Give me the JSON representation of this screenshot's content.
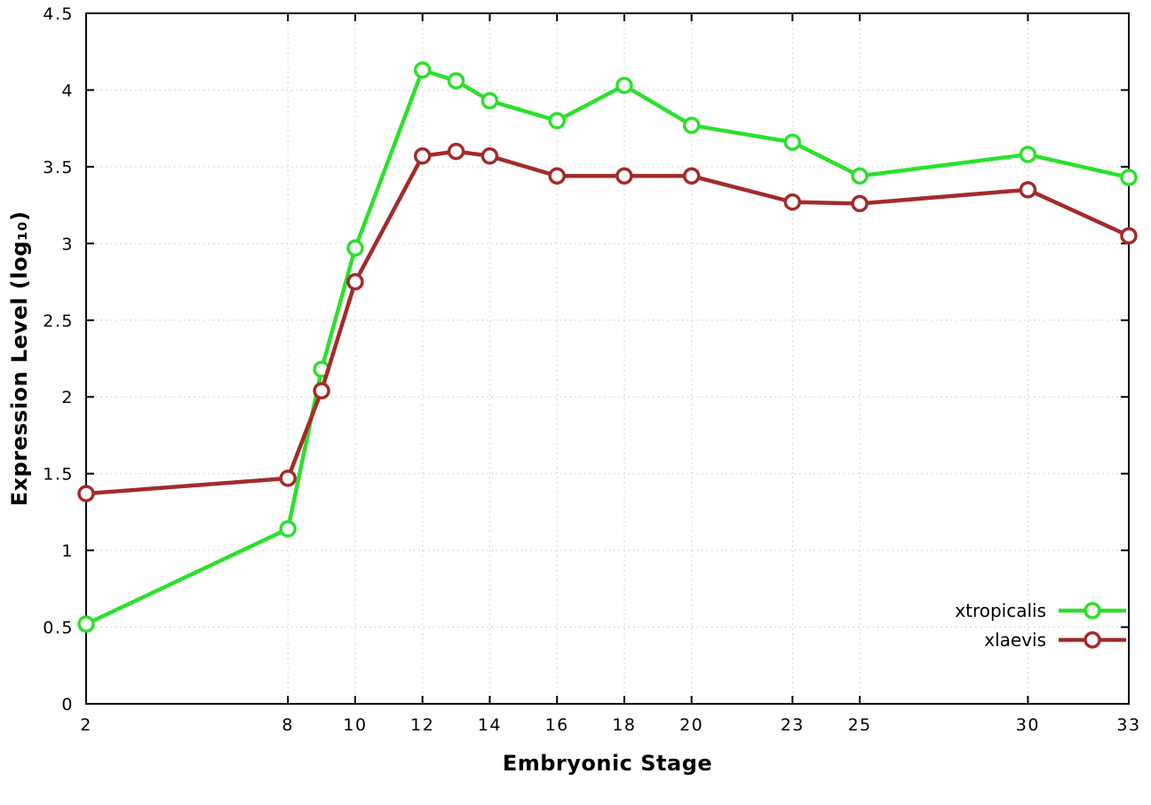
{
  "chart_data": {
    "type": "line",
    "title": "",
    "xlabel": "Embryonic Stage",
    "ylabel": "Expression Level (log₁₀)",
    "xlim": [
      2,
      33
    ],
    "ylim": [
      0,
      4.5
    ],
    "grid": true,
    "legend_position": "bottom-right",
    "axis_color": "#000000",
    "grid_color": "#c8c8c8",
    "background": "#ffffff",
    "x": [
      2,
      8,
      9,
      10,
      12,
      13,
      14,
      16,
      18,
      20,
      23,
      25,
      30,
      33
    ],
    "x_ticks": [
      2,
      8,
      10,
      12,
      14,
      16,
      18,
      20,
      23,
      25,
      30,
      33
    ],
    "x_tick_labels": [
      "2",
      "8",
      "10",
      "12",
      "14",
      "16",
      "18",
      "20",
      "23",
      "25",
      "30",
      "33"
    ],
    "y_ticks": [
      0,
      0.5,
      1,
      1.5,
      2,
      2.5,
      3,
      3.5,
      4,
      4.5
    ],
    "y_tick_labels": [
      "0",
      "0.5",
      "1",
      "1.5",
      "2",
      "2.5",
      "3",
      "3.5",
      "4",
      "4.5"
    ],
    "series": [
      {
        "name": "xtropicalis",
        "color": "#2ce02c",
        "values": [
          0.52,
          1.14,
          2.18,
          2.97,
          4.13,
          4.06,
          3.93,
          3.8,
          4.03,
          3.77,
          3.66,
          3.44,
          3.58,
          3.43
        ]
      },
      {
        "name": "xlaevis",
        "color": "#a52a2a",
        "values": [
          1.37,
          1.47,
          2.04,
          2.75,
          3.57,
          3.6,
          3.57,
          3.44,
          3.44,
          3.44,
          3.27,
          3.26,
          3.35,
          3.05
        ]
      }
    ]
  }
}
